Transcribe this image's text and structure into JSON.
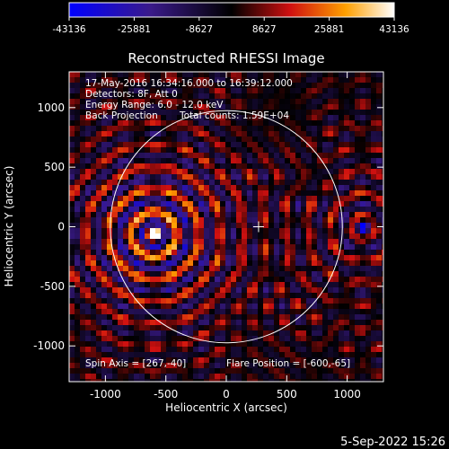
{
  "colorbar": {
    "tick_labels": [
      "-43136",
      "-25881",
      "-8627",
      "8627",
      "25881",
      "43136"
    ],
    "range": [
      -43136,
      43136
    ]
  },
  "info": {
    "time": "17-May-2016 16:34:16.000 to 16:39:12.000",
    "detectors": "Detectors: 8F, Att 0",
    "energy": "Energy Range: 6.0 - 12.0 keV",
    "method": "Back Projection",
    "counts": "Total counts: 1.59E+04",
    "spin_axis": "Spin Axis = [267,-40]",
    "flare_position": "Flare Position = [-600,-65]"
  },
  "footer": {
    "timestamp": "5-Sep-2022 15:26"
  },
  "chart_data": {
    "type": "heatmap",
    "title": "Reconstructed RHESSI Image",
    "xlabel": "Heliocentric X (arcsec)",
    "ylabel": "Heliocentric Y (arcsec)",
    "xlim": [
      -1300,
      1300
    ],
    "ylim": [
      -1300,
      1300
    ],
    "x_ticks": [
      -1000,
      -500,
      0,
      500,
      1000
    ],
    "y_ticks": [
      -1000,
      -500,
      0,
      500,
      1000
    ],
    "x_tick_labels": [
      "-1000",
      "-500",
      "0",
      "500",
      "1000"
    ],
    "y_tick_labels": [
      "-1000",
      "-500",
      "0",
      "500",
      "1000"
    ],
    "solar_disk": {
      "center": [
        0,
        0
      ],
      "radius": 960
    },
    "map_center_marker": [
      267,
      0
    ],
    "sources": [
      {
        "x": -600,
        "y": -65,
        "sign": "positive"
      },
      {
        "x": 1130,
        "y": 0,
        "sign": "negative"
      }
    ],
    "colormap": "blue-purple-red-yellow-white"
  }
}
